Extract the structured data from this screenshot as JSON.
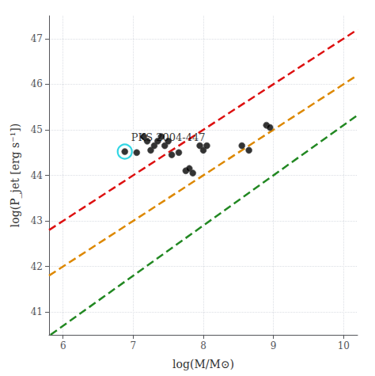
{
  "chart_data": {
    "type": "scatter",
    "xlabel": "log(M/M⊙)",
    "ylabel": "log(P_jet [erg s⁻¹])",
    "xlim": [
      5.8,
      10.2
    ],
    "ylim": [
      40.5,
      47.5
    ],
    "xticks": [
      6,
      7,
      8,
      9,
      10
    ],
    "yticks": [
      41,
      42,
      43,
      44,
      45,
      46,
      47
    ],
    "grid": true,
    "series": [
      {
        "type": "line",
        "color": "#dd1111",
        "line_style": "dashed",
        "x": [
          5.8,
          10.2
        ],
        "values": [
          42.8,
          47.2
        ]
      },
      {
        "type": "line",
        "color": "#dd8800",
        "line_style": "dashed",
        "x": [
          5.8,
          10.2
        ],
        "values": [
          41.8,
          46.2
        ]
      },
      {
        "type": "line",
        "color": "#228822",
        "line_style": "dashed",
        "x": [
          5.82,
          10.2
        ],
        "values": [
          40.5,
          45.32
        ]
      },
      {
        "type": "scatter",
        "color": "#000000",
        "marker": "circle",
        "x": [
          7.05,
          7.15,
          7.2,
          7.25,
          7.3,
          7.35,
          7.4,
          7.45,
          7.5,
          7.55,
          7.65,
          7.75,
          7.8,
          7.85,
          7.95,
          8.0,
          8.05,
          8.55,
          8.65,
          8.9,
          8.95
        ],
        "values": [
          44.5,
          44.85,
          44.75,
          44.55,
          44.65,
          44.75,
          44.85,
          44.65,
          44.75,
          44.45,
          44.5,
          44.1,
          44.15,
          44.05,
          44.65,
          44.55,
          44.65,
          44.65,
          44.55,
          45.1,
          45.05
        ]
      },
      {
        "type": "scatter",
        "color": "#000000",
        "marker": "circle",
        "x": [
          6.88
        ],
        "values": [
          44.52
        ]
      },
      {
        "type": "scatter",
        "color": "#00ccdd",
        "marker": "ring",
        "x": [
          6.88
        ],
        "values": [
          44.52
        ]
      }
    ],
    "annotations": [
      {
        "text": "PKS 2004-447",
        "x": 6.97,
        "y": 44.72
      }
    ]
  }
}
